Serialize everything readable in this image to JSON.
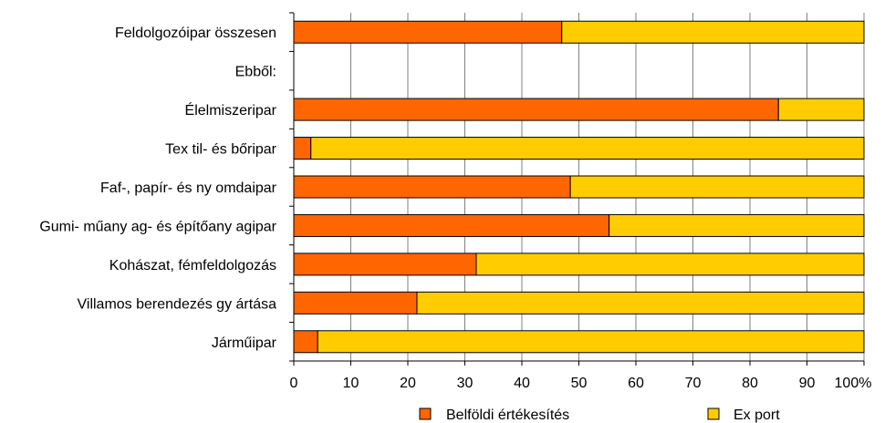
{
  "chart_data": {
    "type": "bar",
    "orientation": "horizontal",
    "stacked": true,
    "categories": [
      "Feldolgozóipar összesen",
      "Ebből:",
      "Élelmiszeripar",
      "Tex til- és bőripar",
      "Faf-, papír- és ny omdaipar",
      "Gumi- műany ag- és építőany agipar",
      "Kohászat, fémfeldolgozás",
      "Villamos berendezés gy ártása",
      "Járműipar"
    ],
    "series": [
      {
        "name": "Belföldi értékesítés",
        "color": "#FF6600",
        "values": [
          47,
          null,
          85,
          3,
          48.5,
          55.3,
          32,
          21.6,
          4.2
        ]
      },
      {
        "name": "Ex port",
        "color": "#FFCC00",
        "values": [
          53,
          null,
          15,
          97,
          51.5,
          44.7,
          68,
          78.4,
          95.8
        ]
      }
    ],
    "xlim": [
      0,
      100
    ],
    "x_ticks": [
      "0",
      "10",
      "20",
      "30",
      "40",
      "50",
      "60",
      "70",
      "80",
      "90",
      "100"
    ],
    "x_unit": "%",
    "grid": "vertical",
    "legend_position": "bottom"
  }
}
